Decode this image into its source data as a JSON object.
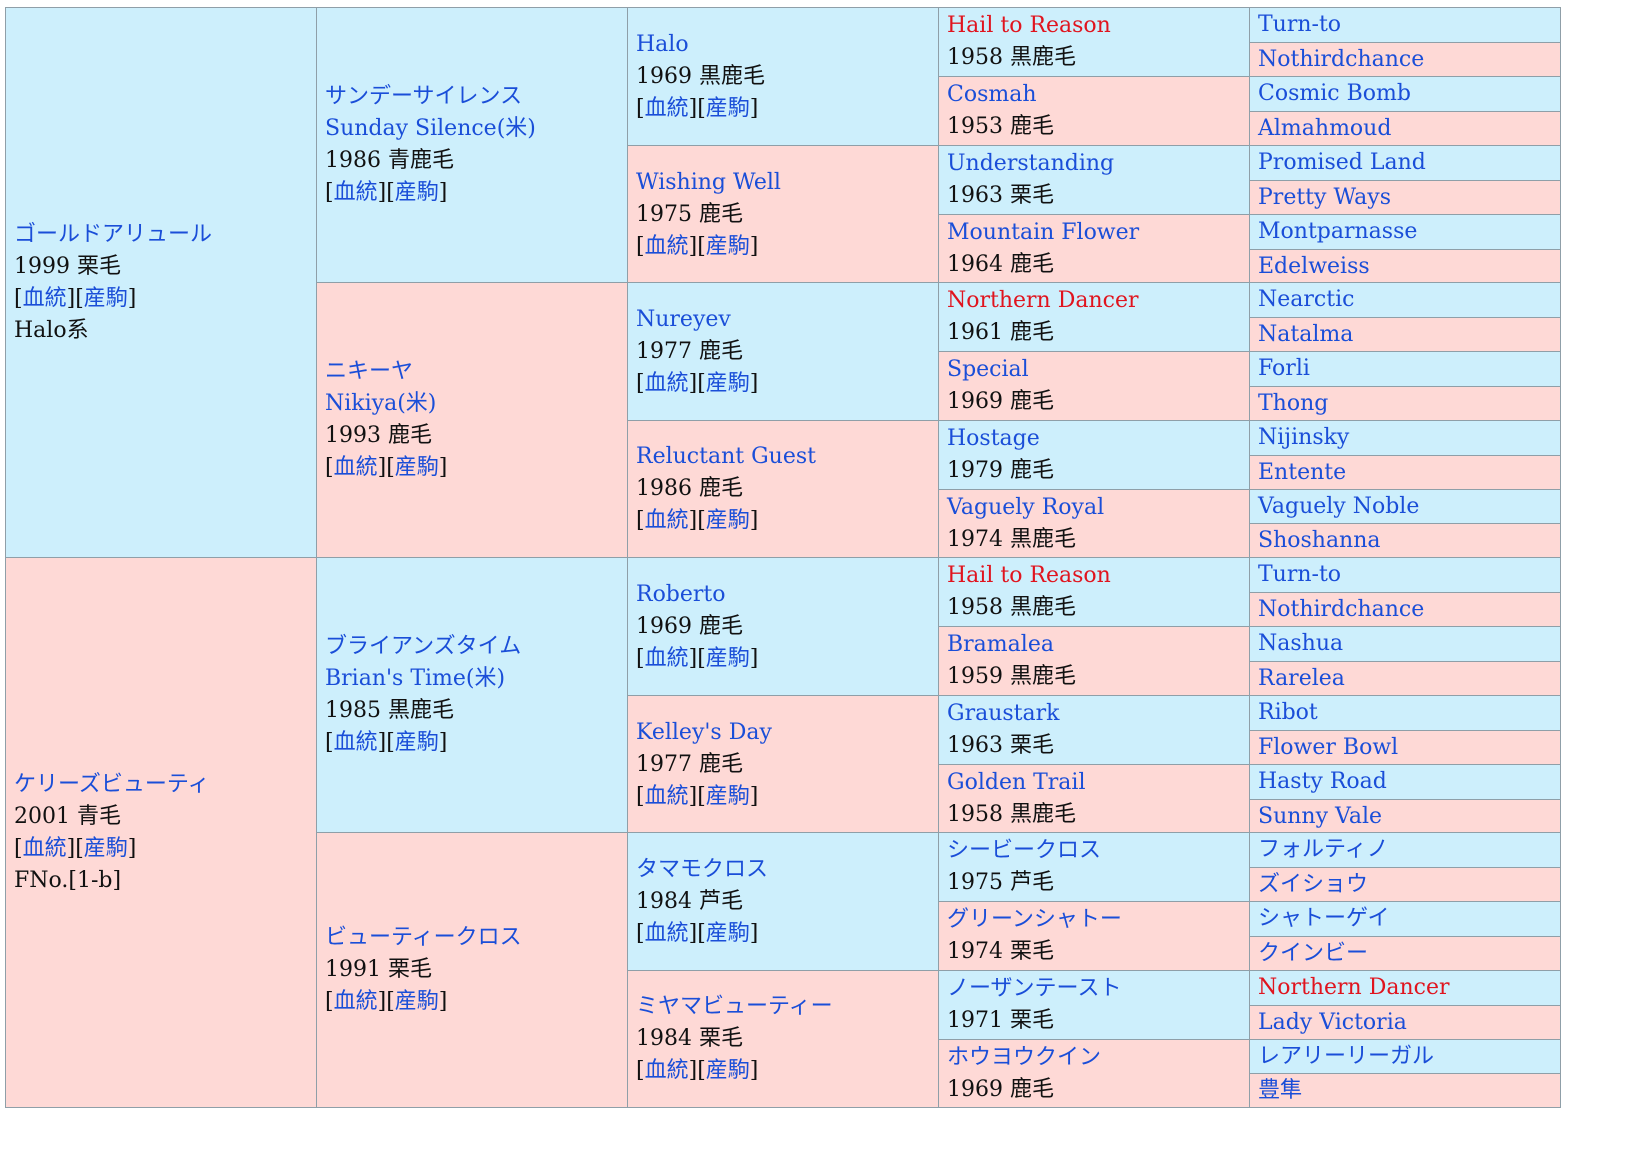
{
  "pedigree": {
    "sire": {
      "name": "ゴールドアリュール",
      "info": "1999 栗毛",
      "line": "Halo系"
    },
    "dam": {
      "name": "ケリーズビューティ",
      "info": "2001 青毛",
      "family": "FNo.[1-b]"
    },
    "gen2": [
      {
        "name": "サンデーサイレンス",
        "name2": "Sunday Silence(米)",
        "info": "1986 青鹿毛"
      },
      {
        "name": "ニキーヤ",
        "name2": "Nikiya(米)",
        "info": "1993 鹿毛"
      },
      {
        "name": "ブライアンズタイム",
        "name2": "Brian's Time(米)",
        "info": "1985 黒鹿毛"
      },
      {
        "name": "ビューティークロス",
        "info": "1991 栗毛"
      }
    ],
    "gen3": [
      {
        "name": "Halo",
        "info": "1969 黒鹿毛"
      },
      {
        "name": "Wishing Well",
        "info": "1975 鹿毛"
      },
      {
        "name": "Nureyev",
        "info": "1977 鹿毛"
      },
      {
        "name": "Reluctant Guest",
        "info": "1986 鹿毛"
      },
      {
        "name": "Roberto",
        "info": "1969 鹿毛"
      },
      {
        "name": "Kelley's Day",
        "info": "1977 鹿毛"
      },
      {
        "name": "タマモクロス",
        "info": "1984 芦毛"
      },
      {
        "name": "ミヤマビューティー",
        "info": "1984 栗毛"
      }
    ],
    "gen4": [
      {
        "name": "Hail to Reason",
        "info": "1958 黒鹿毛"
      },
      {
        "name": "Cosmah",
        "info": "1953 鹿毛"
      },
      {
        "name": "Understanding",
        "info": "1963 栗毛"
      },
      {
        "name": "Mountain Flower",
        "info": "1964 鹿毛"
      },
      {
        "name": "Northern Dancer",
        "info": "1961 鹿毛"
      },
      {
        "name": "Special",
        "info": "1969 鹿毛"
      },
      {
        "name": "Hostage",
        "info": "1979 鹿毛"
      },
      {
        "name": "Vaguely Royal",
        "info": "1974 黒鹿毛"
      },
      {
        "name": "Hail to Reason",
        "info": "1958 黒鹿毛"
      },
      {
        "name": "Bramalea",
        "info": "1959 黒鹿毛"
      },
      {
        "name": "Graustark",
        "info": "1963 栗毛"
      },
      {
        "name": "Golden Trail",
        "info": "1958 黒鹿毛"
      },
      {
        "name": "シービークロス",
        "info": "1975 芦毛"
      },
      {
        "name": "グリーンシャトー",
        "info": "1974 栗毛"
      },
      {
        "name": "ノーザンテースト",
        "info": "1971 栗毛"
      },
      {
        "name": "ホウヨウクイン",
        "info": "1969 鹿毛"
      }
    ],
    "gen5": [
      "Turn-to",
      "Nothirdchance",
      "Cosmic Bomb",
      "Almahmoud",
      "Promised Land",
      "Pretty Ways",
      "Montparnasse",
      "Edelweiss",
      "Nearctic",
      "Natalma",
      "Forli",
      "Thong",
      "Nijinsky",
      "Entente",
      "Vaguely Noble",
      "Shoshanna",
      "Turn-to",
      "Nothirdchance",
      "Nashua",
      "Rarelea",
      "Ribot",
      "Flower Bowl",
      "Hasty Road",
      "Sunny Vale",
      "フォルティノ",
      "ズイショウ",
      "シャトーゲイ",
      "クインビー",
      "Northern Dancer",
      "Lady Victoria",
      "レアリーリーガル",
      "豊隼"
    ],
    "links": {
      "open": "[",
      "bloodline": "血統",
      "mid": "][",
      "offspring": "産駒",
      "close": "]"
    },
    "colors": {
      "male_bg": "#cdeffc",
      "female_bg": "#fed9d6",
      "link": "#1a4ed8",
      "highlight": "#e0141e",
      "border": "#8f9fa8"
    }
  }
}
